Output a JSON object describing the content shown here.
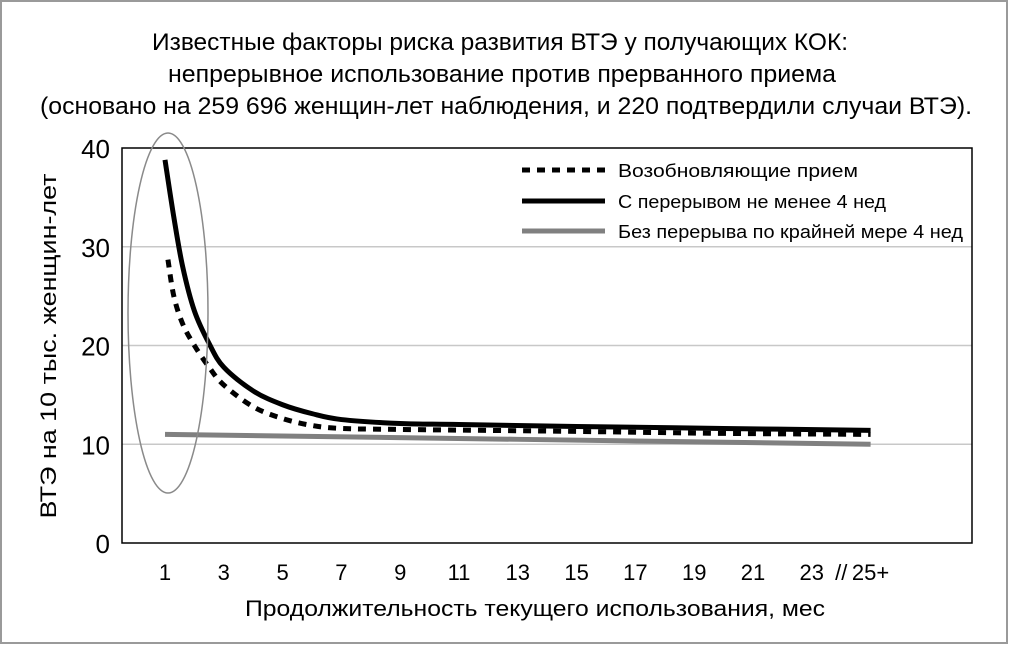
{
  "chart_data": {
    "type": "line",
    "title": [
      "Известные факторы риска развития ВТЭ у получающих КОК:",
      "непрерывное использование против прерванного приема",
      "(основано на 259 696 женщин-лет наблюдения, и 220 подтвердили случаи ВТЭ)."
    ],
    "xlabel": "Продолжительность текущего использования, мес",
    "ylabel": "ВТЭ на 10 тыс. женщин-лет",
    "ylim": [
      0,
      40
    ],
    "yticks": [
      "0",
      "10",
      "20",
      "30",
      "40"
    ],
    "ytick_values": [
      0,
      10,
      20,
      30,
      40
    ],
    "xticks": [
      "1",
      "3",
      "5",
      "7",
      "9",
      "11",
      "13",
      "15",
      "17",
      "19",
      "21",
      "23",
      "//",
      "25+"
    ],
    "xtick_values": [
      1,
      3,
      5,
      7,
      9,
      11,
      13,
      15,
      17,
      19,
      21,
      23,
      24,
      25
    ],
    "grid": "horizontal",
    "legend_position": "top-right",
    "annotation": "ellipse highlighting month 1",
    "series": [
      {
        "name": "Возобновляющие прием",
        "style": "dashed",
        "color": "#000000",
        "points": [
          [
            1.1,
            28.7
          ],
          [
            1.3,
            25
          ],
          [
            1.6,
            22.2
          ],
          [
            2,
            20
          ],
          [
            2.5,
            17.8
          ],
          [
            3,
            16
          ],
          [
            4,
            13.8
          ],
          [
            5,
            12.6
          ],
          [
            6,
            11.9
          ],
          [
            7,
            11.6
          ],
          [
            9,
            11.5
          ],
          [
            15,
            11.3
          ],
          [
            20,
            11.1
          ],
          [
            25,
            11
          ]
        ]
      },
      {
        "name": "С перерывом не менее 4 нед",
        "style": "solid",
        "color": "#000000",
        "points": [
          [
            1,
            38.8
          ],
          [
            1.3,
            33
          ],
          [
            1.6,
            28
          ],
          [
            2,
            23.5
          ],
          [
            2.5,
            20.2
          ],
          [
            3,
            17.8
          ],
          [
            4,
            15.4
          ],
          [
            5,
            14
          ],
          [
            6,
            13.1
          ],
          [
            7,
            12.5
          ],
          [
            9,
            12.1
          ],
          [
            11,
            12
          ],
          [
            15,
            11.8
          ],
          [
            20,
            11.6
          ],
          [
            25,
            11.4
          ]
        ]
      },
      {
        "name": "Без перерыва по крайней мере 4 нед",
        "style": "solid",
        "color": "#808080",
        "points": [
          [
            1,
            11
          ],
          [
            25,
            10
          ]
        ]
      }
    ]
  }
}
